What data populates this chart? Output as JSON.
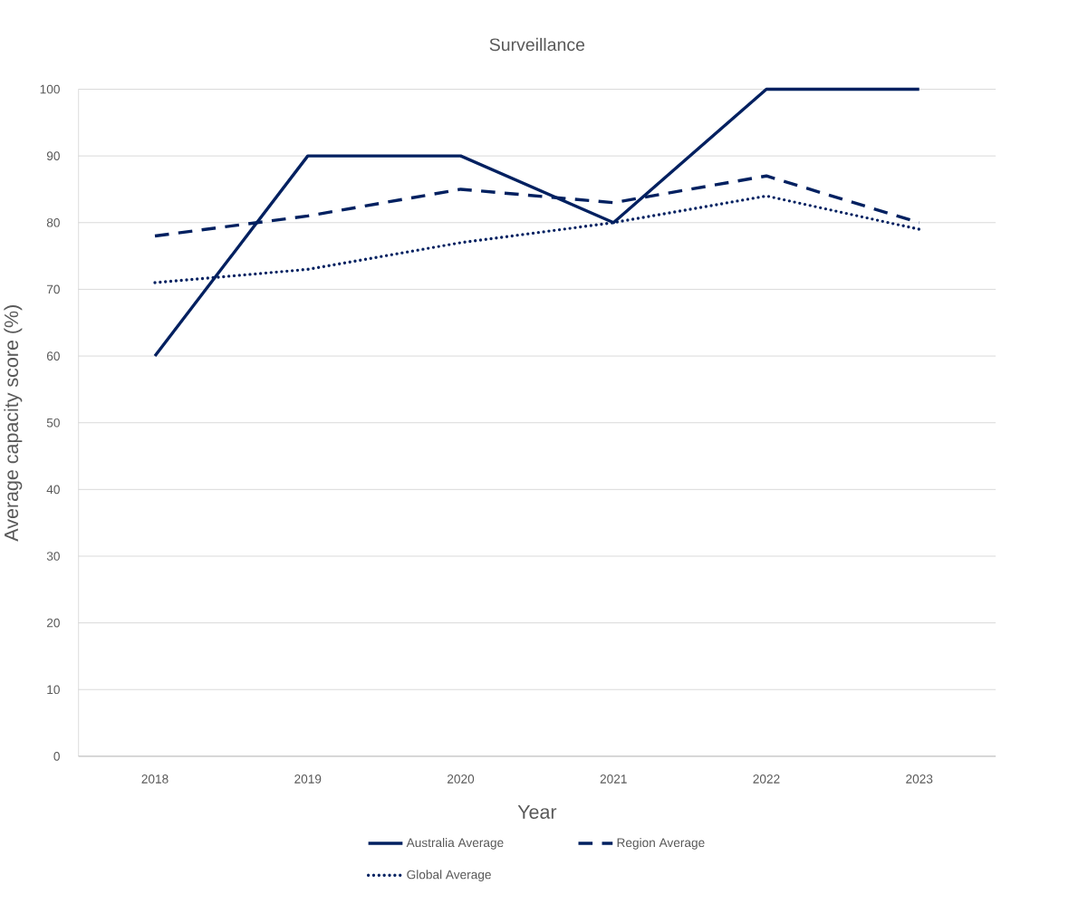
{
  "chart_data": {
    "type": "line",
    "title": "Surveillance",
    "xlabel": "Year",
    "ylabel": "Average capacity score (%)",
    "categories": [
      "2018",
      "2019",
      "2020",
      "2021",
      "2022",
      "2023"
    ],
    "series": [
      {
        "name": "Australia Average",
        "color": "#002060",
        "line_style": "solid",
        "values": [
          60,
          90,
          90,
          80,
          100,
          100
        ]
      },
      {
        "name": "Region Average",
        "color": "#002060",
        "line_style": "dashed",
        "values": [
          78,
          81,
          85,
          83,
          87,
          80
        ]
      },
      {
        "name": "Global Average",
        "color": "#002060",
        "line_style": "dotted",
        "values": [
          71,
          73,
          77,
          80,
          84,
          79
        ]
      }
    ],
    "ylim": [
      0,
      100
    ],
    "yticks": [
      0,
      10,
      20,
      30,
      40,
      50,
      60,
      70,
      80,
      90,
      100
    ],
    "grid": "y",
    "legend": "bottom",
    "marker": "none"
  }
}
